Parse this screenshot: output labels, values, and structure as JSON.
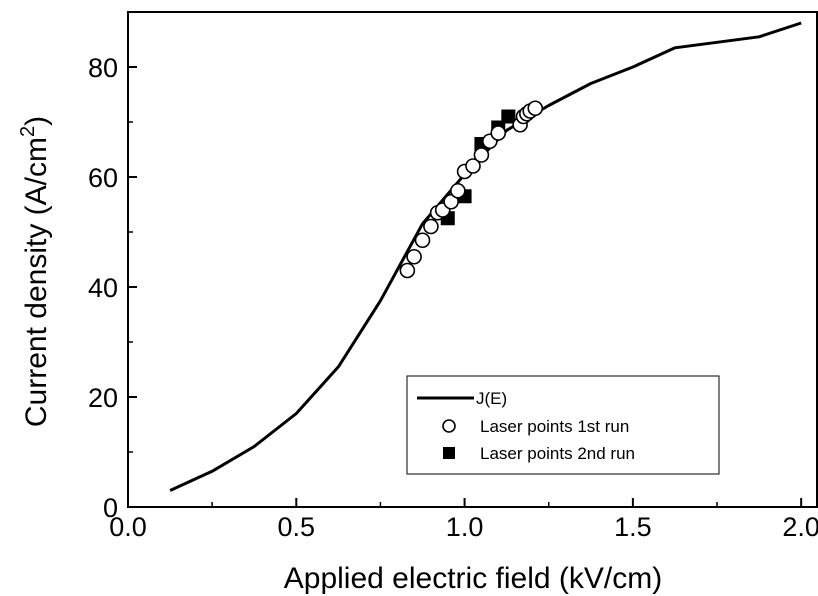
{
  "chart_data": {
    "type": "line",
    "xlabel": "Applied electric field (kV/cm)",
    "ylabel_main": "Current density (A/cm",
    "ylabel_sup": "2",
    "ylabel_close": ")",
    "xlim": [
      0.0,
      2.05
    ],
    "ylim": [
      0,
      90
    ],
    "xticks": [
      0.0,
      0.5,
      1.0,
      1.5,
      2.0
    ],
    "xtick_labels": [
      "0.0",
      "0.5",
      "1.0",
      "1.5",
      "2.0"
    ],
    "yticks": [
      0,
      20,
      40,
      60,
      80
    ],
    "ytick_labels": [
      "0",
      "20",
      "40",
      "60",
      "80"
    ],
    "grid": false,
    "legend_placement": "lower-right",
    "series": [
      {
        "name": "J(E)",
        "kind": "line",
        "color": "#000000",
        "x": [
          0.125,
          0.25,
          0.375,
          0.5,
          0.625,
          0.75,
          0.875,
          1.0,
          1.125,
          1.25,
          1.375,
          1.5,
          1.625,
          1.75,
          1.875,
          2.0
        ],
        "y": [
          3.0,
          6.5,
          11.0,
          17.0,
          25.5,
          37.5,
          51.5,
          60.5,
          68.5,
          73.0,
          77.0,
          80.0,
          83.5,
          84.5,
          85.5,
          88.0
        ]
      },
      {
        "name": "Laser points 1st run",
        "kind": "scatter",
        "marker": "open-circle",
        "color": "#000000",
        "x": [
          0.83,
          0.85,
          0.875,
          0.9,
          0.92,
          0.935,
          0.96,
          0.98,
          1.0,
          1.025,
          1.05,
          1.075,
          1.1,
          1.165,
          1.175,
          1.185,
          1.195,
          1.21
        ],
        "y": [
          43.0,
          45.5,
          48.5,
          51.0,
          53.5,
          54.0,
          55.5,
          57.5,
          61.0,
          62.0,
          64.0,
          66.5,
          68.0,
          69.5,
          71.0,
          71.5,
          72.0,
          72.5
        ]
      },
      {
        "name": "Laser points 2nd run",
        "kind": "scatter",
        "marker": "filled-square",
        "color": "#000000",
        "x": [
          0.95,
          1.0,
          1.05,
          1.1,
          1.13
        ],
        "y": [
          52.5,
          56.5,
          66.0,
          69.0,
          71.0
        ]
      }
    ]
  }
}
